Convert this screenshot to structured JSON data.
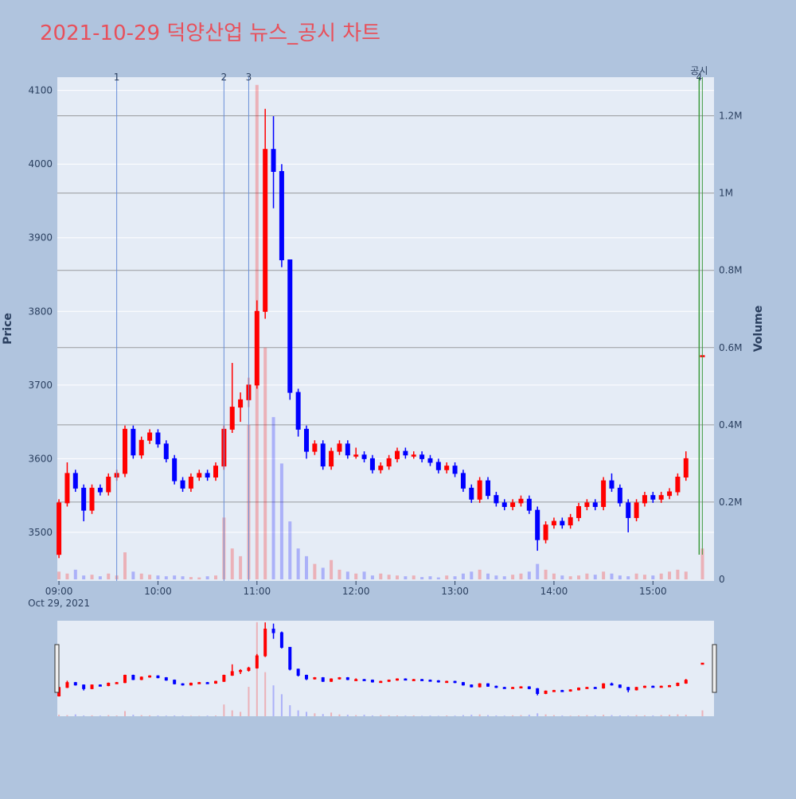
{
  "chart_data": {
    "type": "candlestick",
    "title": "2021-10-29 덕양산업 뉴스_공시 차트",
    "y_title": "Price",
    "y2_title": "Volume",
    "x_date_label": "Oct 29, 2021",
    "increasing_color": "#ff0000",
    "decreasing_color": "#0000ff",
    "x": [
      "2021-10-29 09:00",
      "2021-10-29 09:05",
      "2021-10-29 09:10",
      "2021-10-29 09:15",
      "2021-10-29 09:20",
      "2021-10-29 09:25",
      "2021-10-29 09:30",
      "2021-10-29 09:35",
      "2021-10-29 09:40",
      "2021-10-29 09:45",
      "2021-10-29 09:50",
      "2021-10-29 09:55",
      "2021-10-29 10:00",
      "2021-10-29 10:05",
      "2021-10-29 10:10",
      "2021-10-29 10:15",
      "2021-10-29 10:20",
      "2021-10-29 10:25",
      "2021-10-29 10:30",
      "2021-10-29 10:35",
      "2021-10-29 10:40",
      "2021-10-29 10:45",
      "2021-10-29 10:50",
      "2021-10-29 10:55",
      "2021-10-29 11:00",
      "2021-10-29 11:05",
      "2021-10-29 11:10",
      "2021-10-29 11:15",
      "2021-10-29 11:20",
      "2021-10-29 11:25",
      "2021-10-29 11:30",
      "2021-10-29 11:35",
      "2021-10-29 11:40",
      "2021-10-29 11:45",
      "2021-10-29 11:50",
      "2021-10-29 11:55",
      "2021-10-29 12:00",
      "2021-10-29 12:05",
      "2021-10-29 12:10",
      "2021-10-29 12:15",
      "2021-10-29 12:20",
      "2021-10-29 12:25",
      "2021-10-29 12:30",
      "2021-10-29 12:35",
      "2021-10-29 12:40",
      "2021-10-29 12:45",
      "2021-10-29 12:50",
      "2021-10-29 12:55",
      "2021-10-29 13:00",
      "2021-10-29 13:05",
      "2021-10-29 13:10",
      "2021-10-29 13:15",
      "2021-10-29 13:20",
      "2021-10-29 13:25",
      "2021-10-29 13:30",
      "2021-10-29 13:35",
      "2021-10-29 13:40",
      "2021-10-29 13:45",
      "2021-10-29 13:50",
      "2021-10-29 13:55",
      "2021-10-29 14:00",
      "2021-10-29 14:05",
      "2021-10-29 14:10",
      "2021-10-29 14:15",
      "2021-10-29 14:20",
      "2021-10-29 14:25",
      "2021-10-29 14:30",
      "2021-10-29 14:35",
      "2021-10-29 14:40",
      "2021-10-29 14:45",
      "2021-10-29 14:50",
      "2021-10-29 14:55",
      "2021-10-29 15:00",
      "2021-10-29 15:05",
      "2021-10-29 15:10",
      "2021-10-29 15:15",
      "2021-10-29 15:20",
      "2021-10-29 15:30"
    ],
    "open": [
      3470,
      3540,
      3580,
      3560,
      3530,
      3560,
      3555,
      3575,
      3580,
      3640,
      3605,
      3625,
      3635,
      3620,
      3600,
      3570,
      3560,
      3575,
      3580,
      3575,
      3590,
      3640,
      3670,
      3680,
      3700,
      3800,
      4020,
      3990,
      3870,
      3690,
      3640,
      3610,
      3620,
      3590,
      3610,
      3620,
      3605,
      3605,
      3600,
      3585,
      3590,
      3600,
      3610,
      3605,
      3605,
      3600,
      3595,
      3585,
      3590,
      3580,
      3560,
      3545,
      3570,
      3550,
      3540,
      3535,
      3540,
      3545,
      3530,
      3490,
      3510,
      3515,
      3510,
      3520,
      3535,
      3540,
      3535,
      3570,
      3560,
      3540,
      3520,
      3540,
      3550,
      3545,
      3550,
      3555,
      3575,
      3740
    ],
    "high": [
      3545,
      3595,
      3585,
      3565,
      3565,
      3565,
      3580,
      3585,
      3645,
      3645,
      3630,
      3640,
      3640,
      3625,
      3605,
      3575,
      3580,
      3585,
      3585,
      3595,
      3645,
      3730,
      3690,
      3710,
      3815,
      4075,
      4065,
      4000,
      3870,
      3695,
      3645,
      3625,
      3625,
      3615,
      3625,
      3625,
      3615,
      3610,
      3605,
      3595,
      3605,
      3615,
      3615,
      3610,
      3610,
      3605,
      3600,
      3595,
      3595,
      3585,
      3565,
      3575,
      3575,
      3555,
      3545,
      3545,
      3550,
      3550,
      3535,
      3515,
      3520,
      3520,
      3525,
      3540,
      3545,
      3545,
      3575,
      3580,
      3565,
      3545,
      3545,
      3555,
      3555,
      3555,
      3560,
      3580,
      3610,
      3740
    ],
    "low": [
      3465,
      3535,
      3555,
      3515,
      3525,
      3550,
      3550,
      3570,
      3575,
      3600,
      3600,
      3620,
      3615,
      3595,
      3565,
      3555,
      3555,
      3570,
      3570,
      3570,
      3585,
      3635,
      3650,
      3670,
      3695,
      3790,
      3940,
      3860,
      3680,
      3630,
      3600,
      3605,
      3585,
      3585,
      3605,
      3600,
      3600,
      3595,
      3580,
      3580,
      3585,
      3595,
      3600,
      3600,
      3595,
      3590,
      3580,
      3580,
      3575,
      3555,
      3540,
      3540,
      3545,
      3535,
      3530,
      3530,
      3535,
      3525,
      3475,
      3485,
      3505,
      3505,
      3505,
      3515,
      3530,
      3530,
      3530,
      3555,
      3535,
      3500,
      3515,
      3535,
      3540,
      3540,
      3545,
      3550,
      3570,
      3740
    ],
    "close": [
      3540,
      3580,
      3560,
      3530,
      3560,
      3555,
      3575,
      3580,
      3640,
      3605,
      3625,
      3635,
      3620,
      3600,
      3570,
      3560,
      3575,
      3580,
      3575,
      3590,
      3640,
      3670,
      3680,
      3700,
      3800,
      4020,
      3990,
      3870,
      3690,
      3640,
      3610,
      3620,
      3590,
      3610,
      3620,
      3605,
      3605,
      3600,
      3585,
      3590,
      3600,
      3610,
      3605,
      3605,
      3600,
      3595,
      3585,
      3590,
      3580,
      3560,
      3545,
      3570,
      3550,
      3540,
      3535,
      3540,
      3545,
      3530,
      3490,
      3510,
      3515,
      3510,
      3520,
      3535,
      3540,
      3535,
      3570,
      3560,
      3540,
      3520,
      3540,
      3550,
      3545,
      3550,
      3555,
      3575,
      3600,
      3740
    ],
    "volume": [
      20000,
      15000,
      25000,
      10000,
      12000,
      8000,
      15000,
      10000,
      70000,
      20000,
      15000,
      12000,
      10000,
      8000,
      10000,
      8000,
      6000,
      5000,
      8000,
      10000,
      160000,
      80000,
      60000,
      400000,
      1280000,
      600000,
      420000,
      300000,
      150000,
      80000,
      60000,
      40000,
      30000,
      50000,
      25000,
      20000,
      15000,
      20000,
      10000,
      15000,
      12000,
      10000,
      8000,
      10000,
      6000,
      8000,
      5000,
      10000,
      8000,
      15000,
      20000,
      25000,
      15000,
      10000,
      8000,
      12000,
      15000,
      20000,
      40000,
      25000,
      15000,
      10000,
      8000,
      10000,
      15000,
      12000,
      20000,
      15000,
      10000,
      8000,
      15000,
      12000,
      10000,
      15000,
      20000,
      25000,
      20000,
      80000
    ],
    "xlim": [
      "2021-10-29 08:59",
      "2021-10-29 15:37"
    ],
    "xticks": [
      {
        "value": "2021-10-29 09:00",
        "label": "09:00"
      },
      {
        "value": "2021-10-29 10:00",
        "label": "10:00"
      },
      {
        "value": "2021-10-29 11:00",
        "label": "11:00"
      },
      {
        "value": "2021-10-29 12:00",
        "label": "12:00"
      },
      {
        "value": "2021-10-29 13:00",
        "label": "13:00"
      },
      {
        "value": "2021-10-29 14:00",
        "label": "14:00"
      },
      {
        "value": "2021-10-29 15:00",
        "label": "15:00"
      }
    ],
    "ylim": [
      3434,
      4118
    ],
    "yticks": [
      3500,
      3600,
      3700,
      3800,
      3900,
      4000,
      4100
    ],
    "y2lim": [
      0,
      1300000
    ],
    "y2ticks": [
      0,
      {
        "value": 200000,
        "label": "0.2M"
      },
      {
        "value": 400000,
        "label": "0.4M"
      },
      {
        "value": 600000,
        "label": "0.6M"
      },
      {
        "value": 800000,
        "label": "0.8M"
      },
      {
        "value": 1000000,
        "label": "1M"
      },
      {
        "value": 1200000,
        "label": "1.2M"
      }
    ],
    "news": [
      {
        "x": "2021-10-29 09:35",
        "label": "1"
      },
      {
        "x": "2021-10-29 10:40",
        "label": "2"
      },
      {
        "x": "2021-10-29 10:55",
        "label": "3"
      }
    ],
    "disclosures": [
      {
        "x": "2021-10-29 15:28",
        "label": "4",
        "kind": "공시"
      }
    ]
  }
}
